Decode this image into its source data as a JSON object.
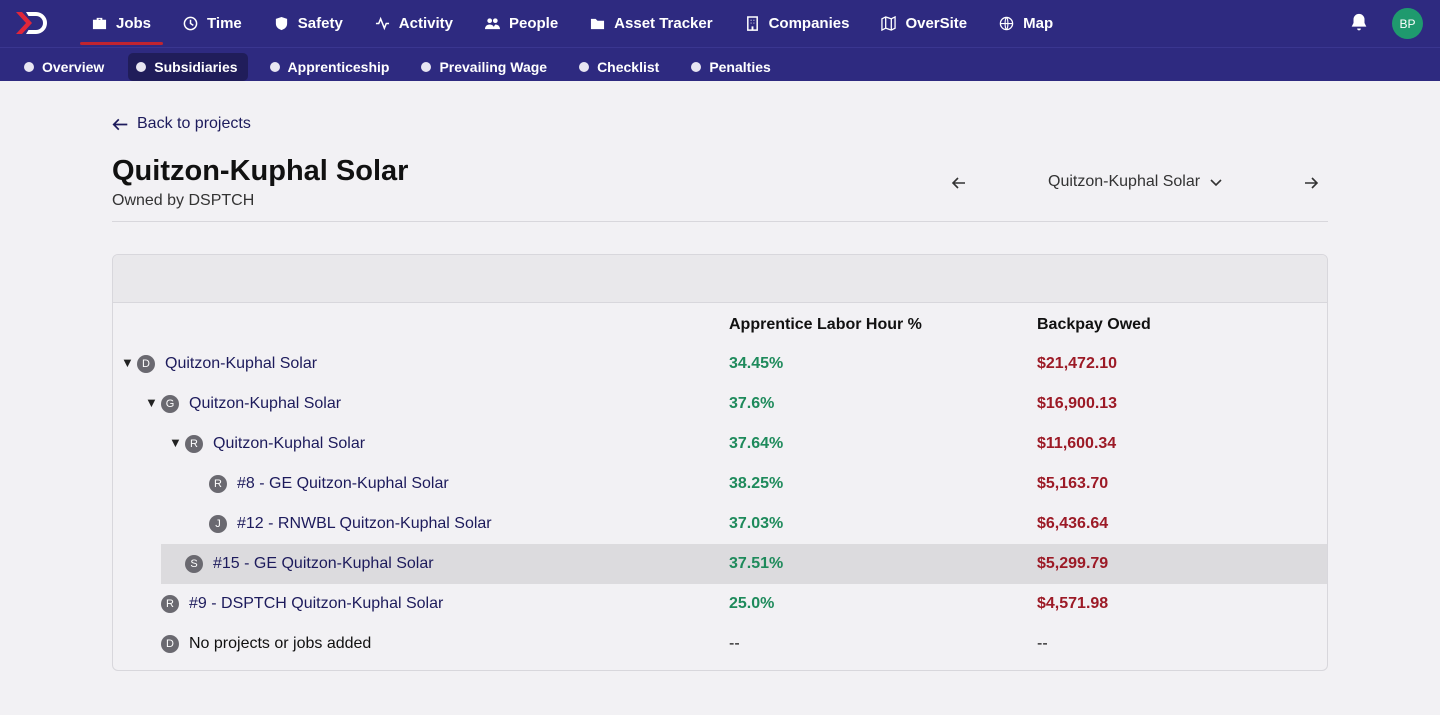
{
  "nav": {
    "items": [
      {
        "label": "Jobs",
        "icon": "briefcase-icon",
        "active": true
      },
      {
        "label": "Time",
        "icon": "clock-icon"
      },
      {
        "label": "Safety",
        "icon": "shield-icon"
      },
      {
        "label": "Activity",
        "icon": "pulse-icon"
      },
      {
        "label": "People",
        "icon": "people-icon"
      },
      {
        "label": "Asset Tracker",
        "icon": "folder-icon"
      },
      {
        "label": "Companies",
        "icon": "building-icon"
      },
      {
        "label": "OverSite",
        "icon": "map-fold-icon"
      },
      {
        "label": "Map",
        "icon": "globe-icon"
      }
    ],
    "avatar_initials": "BP"
  },
  "subnav": {
    "items": [
      {
        "label": "Overview"
      },
      {
        "label": "Subsidiaries",
        "active": true
      },
      {
        "label": "Apprenticeship"
      },
      {
        "label": "Prevailing Wage"
      },
      {
        "label": "Checklist"
      },
      {
        "label": "Penalties"
      }
    ]
  },
  "page": {
    "back_label": "Back to projects",
    "title": "Quitzon-Kuphal Solar",
    "owner": "Owned by DSPTCH",
    "selected_project": "Quitzon-Kuphal Solar"
  },
  "table": {
    "columns": {
      "pct": "Apprentice Labor Hour %",
      "owed": "Backpay Owed"
    },
    "rows": [
      {
        "level": 0,
        "expanded": true,
        "badge": "D",
        "name": "Quitzon-Kuphal Solar",
        "pct": "34.45%",
        "owed": "$21,472.10"
      },
      {
        "level": 1,
        "expanded": true,
        "badge": "G",
        "name": "Quitzon-Kuphal Solar",
        "pct": "37.6%",
        "owed": "$16,900.13"
      },
      {
        "level": 2,
        "expanded": true,
        "badge": "R",
        "name": "Quitzon-Kuphal Solar",
        "pct": "37.64%",
        "owed": "$11,600.34"
      },
      {
        "level": 3,
        "badge": "R",
        "name": "#8 - GE Quitzon-Kuphal Solar",
        "pct": "38.25%",
        "owed": "$5,163.70"
      },
      {
        "level": 3,
        "badge": "J",
        "name": "#12 - RNWBL Quitzon-Kuphal Solar",
        "pct": "37.03%",
        "owed": "$6,436.64"
      },
      {
        "level": 2,
        "badge": "S",
        "name": "#15 - GE Quitzon-Kuphal Solar",
        "pct": "37.51%",
        "owed": "$5,299.79",
        "highlight": true
      },
      {
        "level": 1,
        "badge": "R",
        "name": "#9 - DSPTCH Quitzon-Kuphal Solar",
        "pct": "25.0%",
        "owed": "$4,571.98"
      },
      {
        "level": 1,
        "badge": "D",
        "name": "No projects or jobs added",
        "pct": "--",
        "owed": "--",
        "empty": true
      }
    ]
  },
  "colors": {
    "nav_bg": "#2e2a80",
    "active_underline": "#c0242f",
    "pct_green": "#1e8a5b",
    "owed_red": "#9c1a26",
    "link": "#1d1b5c"
  }
}
